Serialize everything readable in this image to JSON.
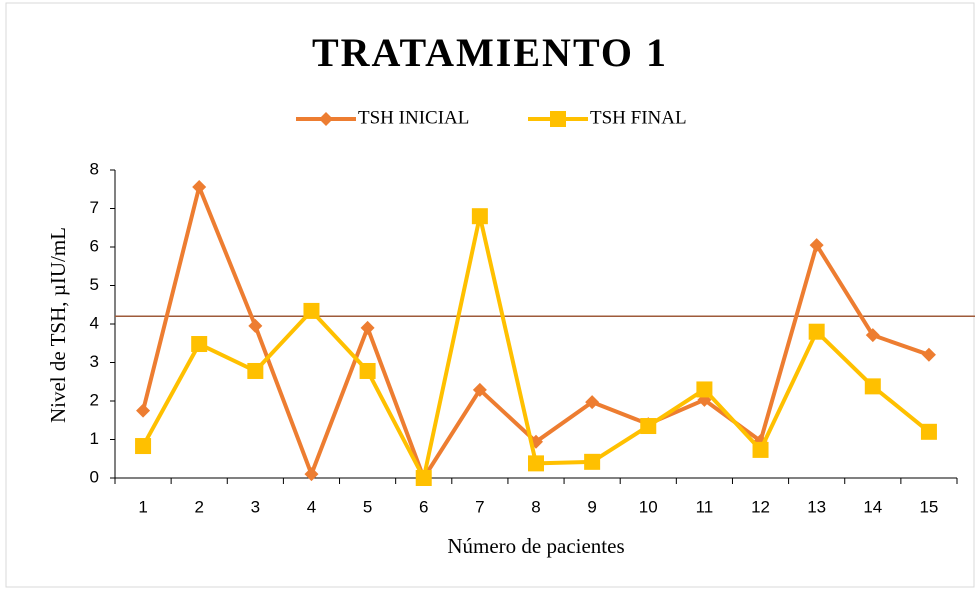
{
  "chart_data": {
    "type": "line",
    "title": "TRATAMIENTO 1",
    "x_label": "Número de pacientes",
    "y_label": "Nivel de TSH, µIU/mL",
    "categories": [
      "1",
      "2",
      "3",
      "4",
      "5",
      "6",
      "7",
      "8",
      "9",
      "10",
      "11",
      "12",
      "13",
      "14",
      "15"
    ],
    "series": [
      {
        "name": "TSH INICIAL",
        "color": "#ED7D31",
        "marker": "diamond",
        "values": [
          1.75,
          7.56,
          3.95,
          0.1,
          3.9,
          0,
          2.29,
          0.94,
          1.97,
          1.4,
          2.03,
          0.96,
          6.05,
          3.71,
          3.2
        ]
      },
      {
        "name": "TSH FINAL",
        "color": "#FFC000",
        "marker": "square",
        "values": [
          0.83,
          3.48,
          2.78,
          4.34,
          2.78,
          0,
          6.8,
          0.38,
          0.42,
          1.35,
          2.3,
          0.73,
          3.8,
          2.38,
          1.2
        ]
      }
    ],
    "reference_line": {
      "value": 4.2,
      "color": "#9E5A3A"
    },
    "ylim": [
      0,
      8
    ],
    "yticks": [
      0,
      1,
      2,
      3,
      4,
      5,
      6,
      7,
      8
    ],
    "legend": "top"
  }
}
